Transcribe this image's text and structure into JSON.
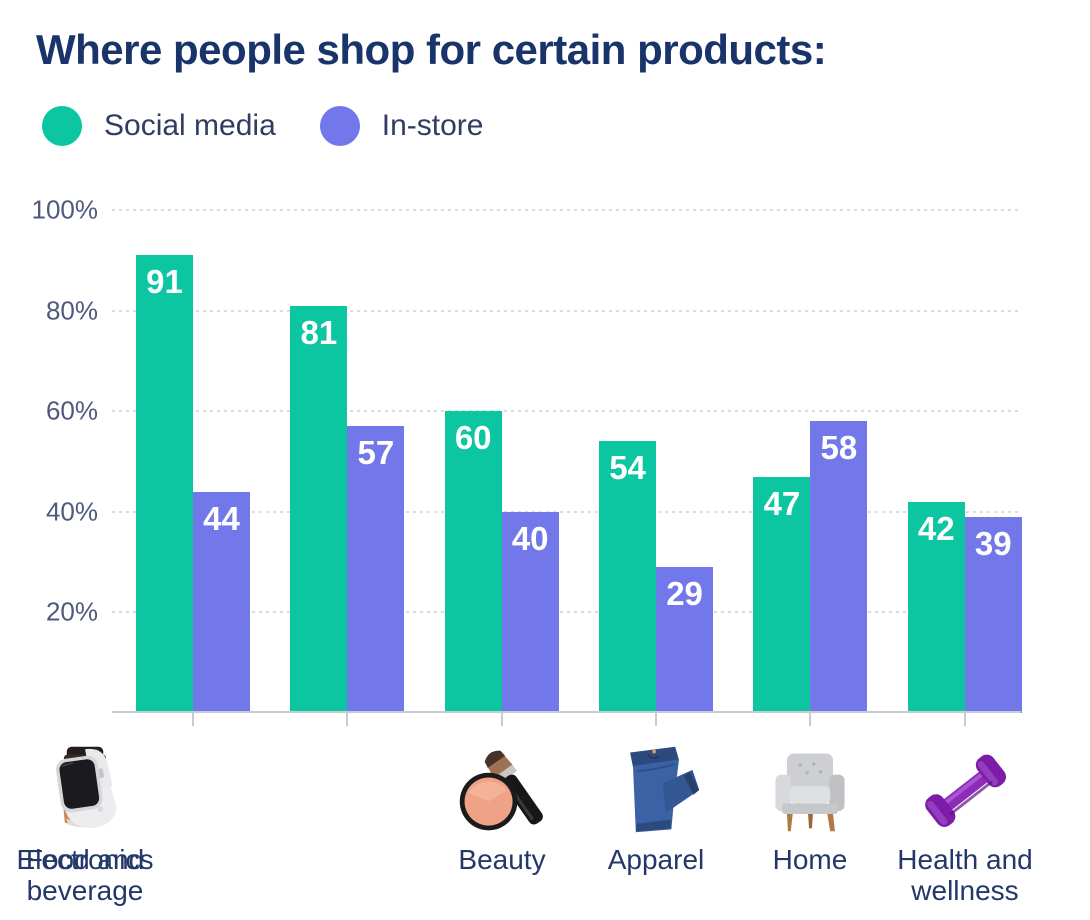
{
  "title": "Where people shop for certain products:",
  "legend": {
    "items": [
      {
        "label": "Social media",
        "color": "#0cc6a2"
      },
      {
        "label": "In-store",
        "color": "#7278e9"
      }
    ]
  },
  "chart_data": {
    "type": "bar",
    "title": "Where people shop for certain products:",
    "categories": [
      "Beauty",
      "Apparel",
      "Home",
      "Health and wellness",
      "Food and beverage",
      "Electronics"
    ],
    "series": [
      {
        "name": "Social media",
        "color": "#0cc6a2",
        "values": [
          91,
          81,
          60,
          54,
          47,
          42
        ]
      },
      {
        "name": "In-store",
        "color": "#7278e9",
        "values": [
          44,
          57,
          40,
          29,
          58,
          39
        ]
      }
    ],
    "unit": "%",
    "y_ticks": [
      "100%",
      "80%",
      "60%",
      "40%",
      "20%"
    ],
    "ylim": [
      0,
      100
    ],
    "grid": "horizontal-dotted",
    "legend_position": "top-left",
    "value_labels": "inside-top-white-bold",
    "colors": {
      "title_text": "#19336b",
      "axis_tick_text": "#50597c",
      "category_text": "#233768",
      "gridline": "#d9dce1",
      "baseline": "#c7cbd3"
    }
  },
  "icons": {
    "beauty": "blush-compact-and-brush-icon",
    "apparel": "folded-jeans-icon",
    "home": "armchair-icon",
    "health_and_wellness": "dumbbell-icon",
    "food_and_beverage": "jar-icon",
    "electronics": "smartwatch-icon"
  }
}
